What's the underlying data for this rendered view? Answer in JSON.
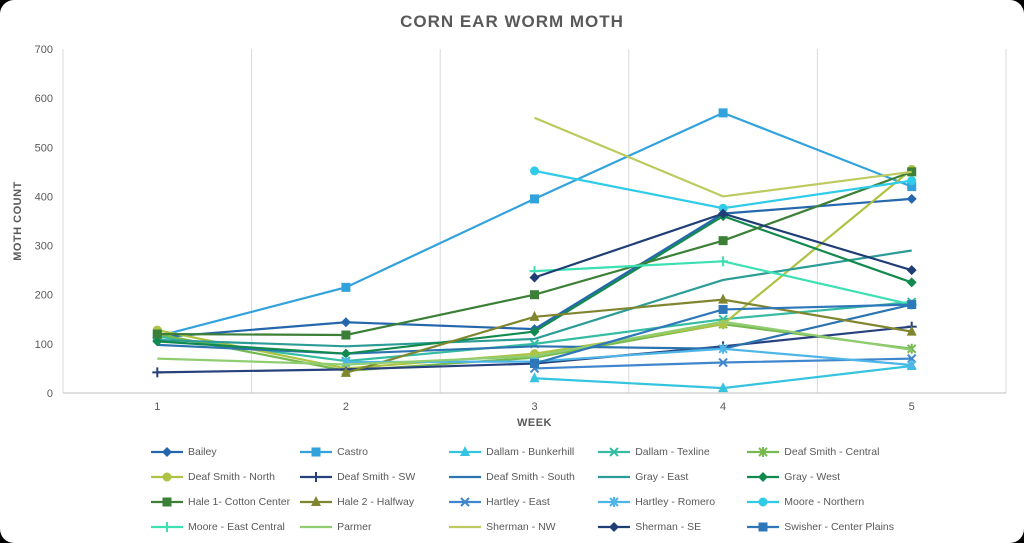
{
  "title": "CORN EAR WORM MOTH",
  "chart_data": {
    "type": "line",
    "title": "CORN EAR WORM MOTH",
    "xlabel": "WEEK",
    "ylabel": "MOTH COUNT",
    "x": [
      1,
      2,
      3,
      4,
      5
    ],
    "ylim": [
      0,
      700
    ],
    "ytick_step": 100,
    "grid": "vertical-only",
    "legend_position": "bottom",
    "text_color": "#595959",
    "grid_color": "#D9D9D9",
    "series": [
      {
        "name": "Bailey",
        "color": "#2567AC",
        "marker": "diamond",
        "values": [
          113,
          144,
          130,
          365,
          395
        ]
      },
      {
        "name": "Castro",
        "color": "#31A2DC",
        "marker": "square",
        "values": [
          115,
          215,
          395,
          570,
          420
        ]
      },
      {
        "name": "Dallam - Bunkerhill",
        "color": "#35C4DF",
        "marker": "triangle",
        "values": [
          null,
          null,
          30,
          10,
          55
        ]
      },
      {
        "name": "Dallam - Texline",
        "color": "#35BCA2",
        "marker": "x",
        "values": [
          115,
          65,
          100,
          150,
          185
        ]
      },
      {
        "name": "Deaf Smith - Central",
        "color": "#76B94F",
        "marker": "star",
        "values": [
          120,
          45,
          72,
          140,
          90
        ]
      },
      {
        "name": "Deaf Smith - North",
        "color": "#AEC243",
        "marker": "circle",
        "values": [
          128,
          50,
          80,
          140,
          455
        ]
      },
      {
        "name": "Deaf Smith - SW",
        "color": "#27417D",
        "marker": "plus",
        "values": [
          42,
          48,
          60,
          95,
          135
        ]
      },
      {
        "name": "Deaf Smith - South",
        "color": "#2C74B0",
        "marker": "none",
        "values": [
          98,
          80,
          95,
          90,
          180
        ]
      },
      {
        "name": "Gray - East",
        "color": "#2B9C96",
        "marker": "none",
        "values": [
          108,
          95,
          110,
          230,
          290
        ]
      },
      {
        "name": "Gray - West",
        "color": "#12894E",
        "marker": "diamond",
        "values": [
          105,
          80,
          125,
          360,
          225
        ]
      },
      {
        "name": "Hale 1- Cotton Center",
        "color": "#3C8038",
        "marker": "square",
        "values": [
          120,
          118,
          200,
          310,
          450
        ]
      },
      {
        "name": "Hale 2 - Halfway",
        "color": "#80862F",
        "marker": "triangle",
        "values": [
          null,
          41,
          155,
          190,
          125
        ]
      },
      {
        "name": "Hartley - East",
        "color": "#3F86CD",
        "marker": "x",
        "values": [
          null,
          null,
          50,
          62,
          70
        ]
      },
      {
        "name": "Hartley - Romero",
        "color": "#4DB5E8",
        "marker": "star",
        "values": [
          null,
          63,
          64,
          90,
          57
        ]
      },
      {
        "name": "Moore - Northern",
        "color": "#2FCBE8",
        "marker": "circle",
        "values": [
          null,
          null,
          452,
          376,
          432
        ]
      },
      {
        "name": "Moore - East Central",
        "color": "#3DE0B2",
        "marker": "plus",
        "values": [
          null,
          null,
          248,
          268,
          180
        ]
      },
      {
        "name": "Parmer",
        "color": "#90CD70",
        "marker": "none",
        "values": [
          70,
          58,
          75,
          145,
          88
        ]
      },
      {
        "name": "Sherman - NW",
        "color": "#BCCA5F",
        "marker": "none",
        "values": [
          null,
          null,
          560,
          400,
          450
        ]
      },
      {
        "name": "Sherman - SE",
        "color": "#203E76",
        "marker": "diamond",
        "values": [
          null,
          null,
          235,
          365,
          250
        ]
      },
      {
        "name": "Swisher - Center Plains",
        "color": "#2E78BA",
        "marker": "square",
        "values": [
          null,
          null,
          60,
          170,
          180
        ]
      }
    ]
  }
}
